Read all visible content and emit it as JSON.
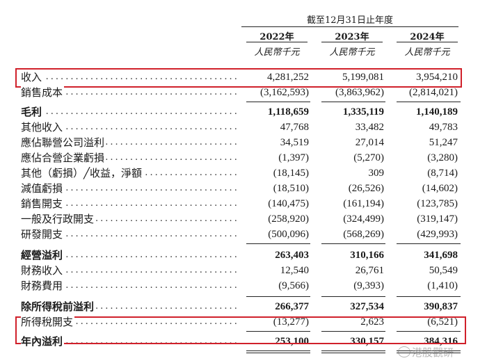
{
  "header": {
    "period": "截至12月31日止年度",
    "columns": [
      {
        "year": "2022年",
        "unit": "人民幣千元"
      },
      {
        "year": "2023年",
        "unit": "人民幣千元"
      },
      {
        "year": "2024年",
        "unit": "人民幣千元"
      }
    ]
  },
  "rows": [
    {
      "label": "收入",
      "v": [
        "4,281,252",
        "5,199,081",
        "3,954,210"
      ]
    },
    {
      "label": "銷售成本",
      "v": [
        "(3,162,593)",
        "(3,863,962)",
        "(2,814,021)"
      ]
    },
    {
      "label": "毛利",
      "v": [
        "1,118,659",
        "1,335,119",
        "1,140,189"
      ]
    },
    {
      "label": "其他收入",
      "v": [
        "47,768",
        "33,482",
        "49,783"
      ]
    },
    {
      "label": "應佔聯營公司溢利",
      "v": [
        "34,519",
        "27,014",
        "51,247"
      ]
    },
    {
      "label": "應佔合營企業虧損",
      "v": [
        "(1,397)",
        "(5,270)",
        "(3,280)"
      ]
    },
    {
      "label": "其他（虧損）╱收益，淨額",
      "v": [
        "(18,145)",
        "309",
        "(8,714)"
      ]
    },
    {
      "label": "減值虧損",
      "v": [
        "(18,510)",
        "(26,526)",
        "(14,602)"
      ]
    },
    {
      "label": "銷售開支",
      "v": [
        "(140,475)",
        "(161,194)",
        "(123,785)"
      ]
    },
    {
      "label": "一般及行政開支",
      "v": [
        "(258,920)",
        "(324,499)",
        "(319,147)"
      ]
    },
    {
      "label": "研發開支",
      "v": [
        "(500,096)",
        "(568,269)",
        "(429,993)"
      ]
    },
    {
      "label": "經營溢利",
      "v": [
        "263,403",
        "310,166",
        "341,698"
      ]
    },
    {
      "label": "財務收入",
      "v": [
        "12,540",
        "26,761",
        "50,549"
      ]
    },
    {
      "label": "財務費用",
      "v": [
        "(9,566)",
        "(9,393)",
        "(1,410)"
      ]
    },
    {
      "label": "除所得稅前溢利",
      "v": [
        "266,377",
        "327,534",
        "390,837"
      ]
    },
    {
      "label": "所得稅開支",
      "v": [
        "(13,277)",
        "2,623",
        "(6,521)"
      ]
    },
    {
      "label": "年內溢利",
      "v": [
        "253,100",
        "330,157",
        "384,316"
      ]
    }
  ],
  "watermark": "港股觀研",
  "colors": {
    "highlight": "#d0202a",
    "text": "#1a1a1a"
  }
}
